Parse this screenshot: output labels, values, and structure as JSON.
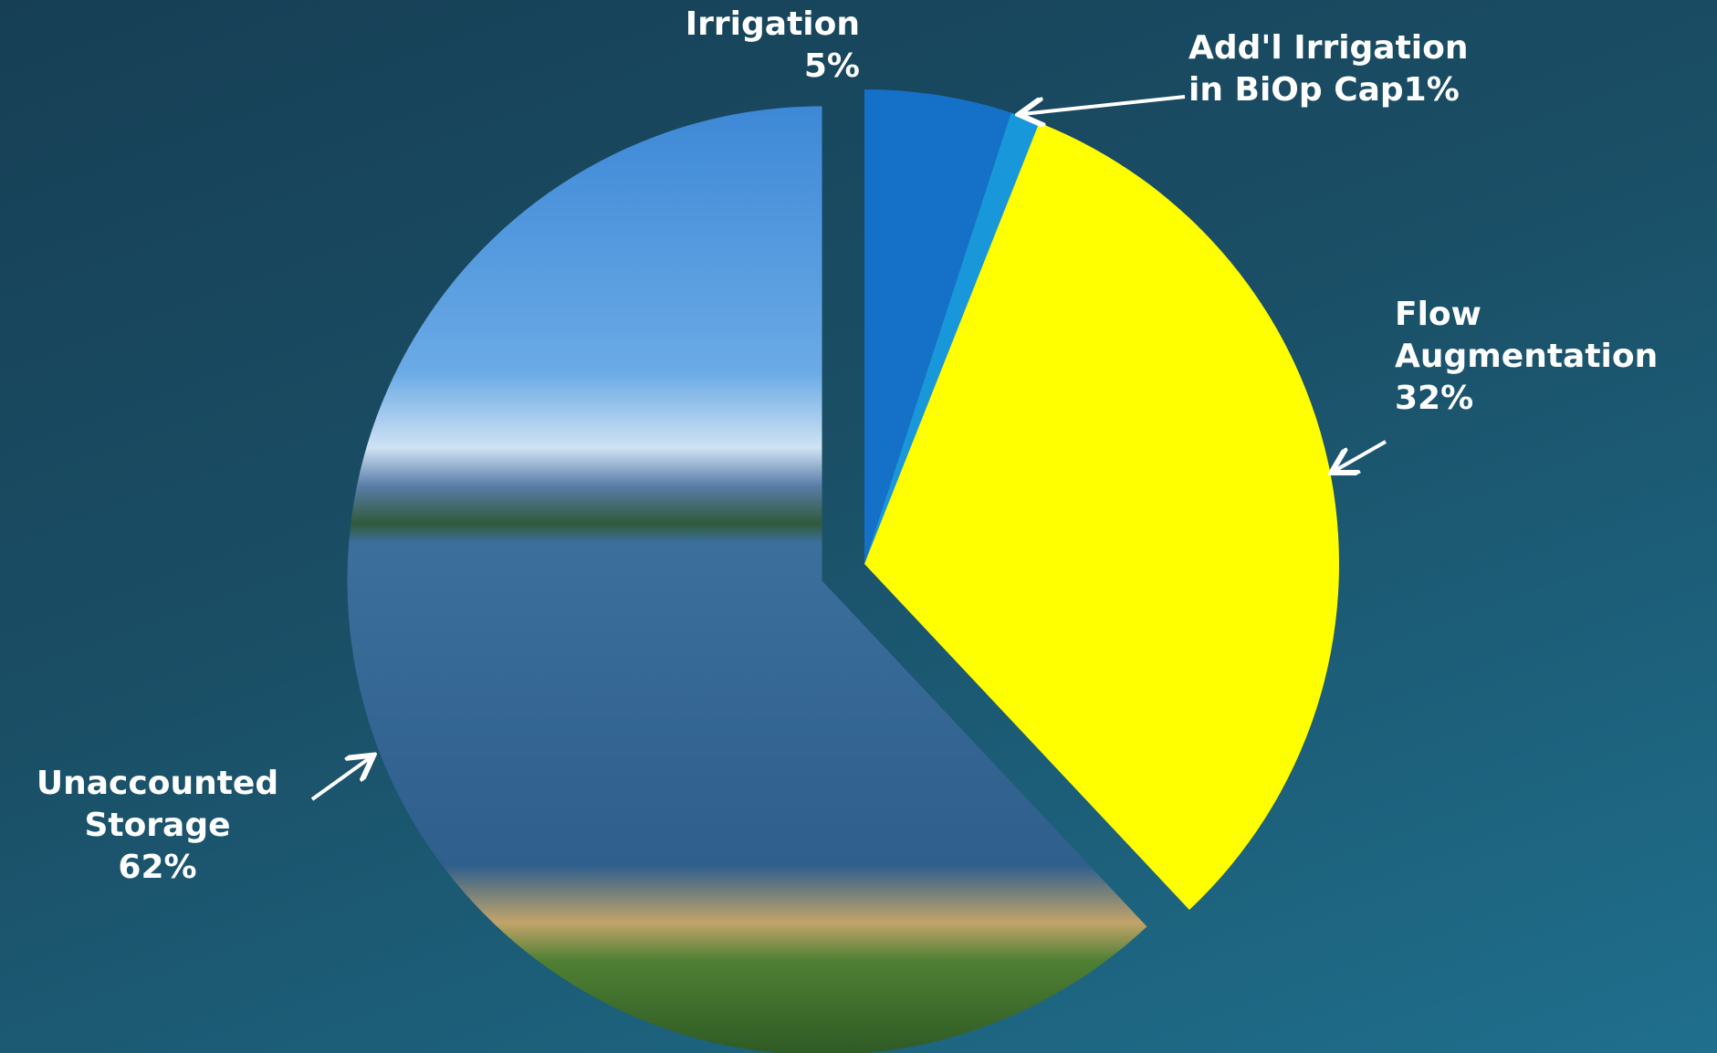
{
  "chart_data": {
    "type": "pie",
    "categories": [
      "Irrigation",
      "Add'l Irrigation in BiOp Cap",
      "Flow Augmentation",
      "Unaccounted Storage"
    ],
    "values": [
      5,
      1,
      32,
      62
    ],
    "value_labels": [
      "5%",
      "1%",
      "32%",
      "62%"
    ],
    "colors": [
      "#1570c8",
      "#1898da",
      "#ffff00",
      "url(#photo)"
    ]
  }
}
